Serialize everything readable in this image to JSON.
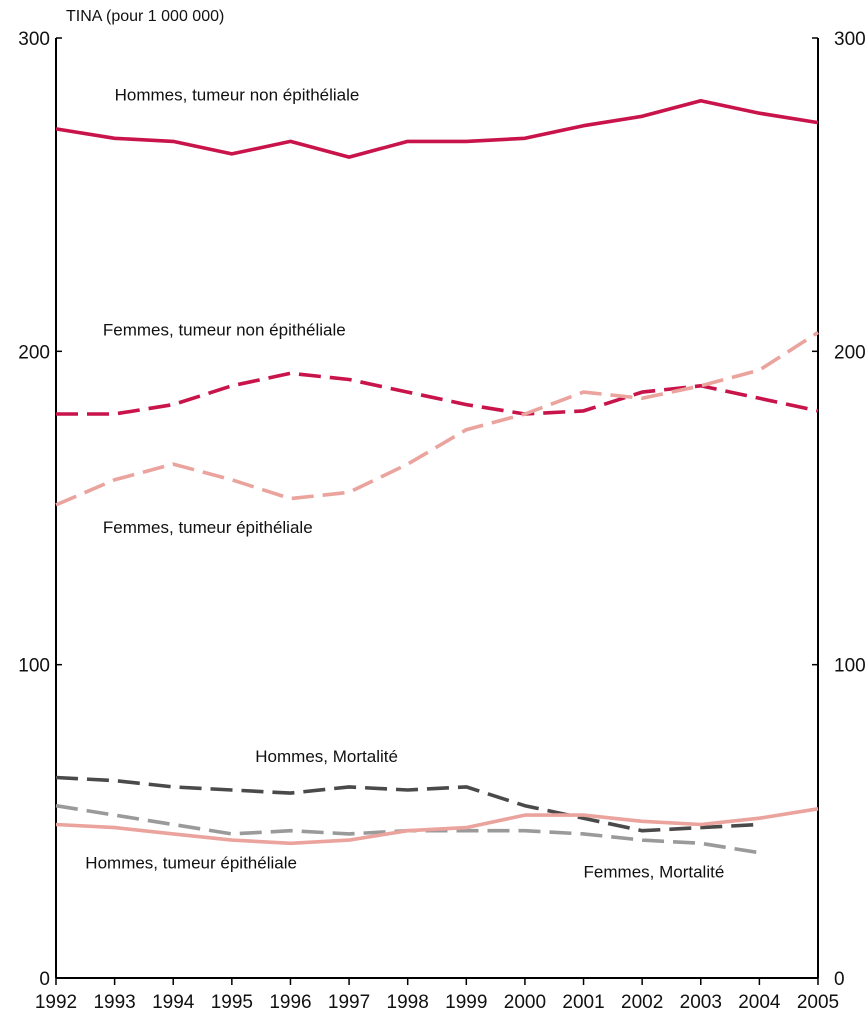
{
  "chart_data": {
    "type": "line",
    "ylabel": "TINA (pour 1 000 000)",
    "ylim": [
      0,
      300
    ],
    "yticks": [
      "0",
      "100",
      "200",
      "300"
    ],
    "x": [
      "1992",
      "1993",
      "1994",
      "1995",
      "1996",
      "1997",
      "1998",
      "1999",
      "2000",
      "2001",
      "2002",
      "2003",
      "2004",
      "2005"
    ],
    "grid": false,
    "series": [
      {
        "name": "Hommes, tumeur non épithéliale",
        "color": "#c8144a",
        "dash": "solid",
        "values": [
          271,
          268,
          267,
          263,
          267,
          262,
          267,
          267,
          268,
          272,
          275,
          280,
          276,
          273
        ]
      },
      {
        "name": "Femmes, tumeur non épithéliale",
        "color": "#c8144a",
        "dash": "dashed",
        "values": [
          180,
          180,
          183,
          189,
          193,
          191,
          187,
          183,
          180,
          181,
          187,
          189,
          185,
          181
        ]
      },
      {
        "name": "Femmes, tumeur épithéliale",
        "color": "#eba39d",
        "dash": "dashed",
        "values": [
          151,
          159,
          164,
          159,
          153,
          155,
          164,
          175,
          180,
          187,
          185,
          189,
          194,
          206
        ]
      },
      {
        "name": "Hommes, Mortalité",
        "color": "#4a4a4a",
        "dash": "dashed",
        "values": [
          64,
          63,
          61,
          60,
          59,
          61,
          60,
          61,
          55,
          51,
          47,
          48,
          49,
          null
        ]
      },
      {
        "name": "Femmes, Mortalité",
        "color": "#9a9a9a",
        "dash": "dashed",
        "values": [
          55,
          52,
          49,
          46,
          47,
          46,
          47,
          47,
          47,
          46,
          44,
          43,
          40,
          null
        ]
      },
      {
        "name": "Hommes, tumeur épithéliale",
        "color": "#eba39d",
        "dash": "solid",
        "values": [
          49,
          48,
          46,
          44,
          43,
          44,
          47,
          48,
          52,
          52,
          50,
          49,
          51,
          54
        ]
      }
    ],
    "annotations": [
      {
        "text": "Hommes, tumeur non épithéliale",
        "series": 0,
        "x": "1993",
        "y": 280
      },
      {
        "text": "Femmes, tumeur non épithéliale",
        "series": 1,
        "x": "1992.8",
        "y": 205
      },
      {
        "text": "Femmes, tumeur épithéliale",
        "series": 2,
        "x": "1992.8",
        "y": 142
      },
      {
        "text": "Hommes, Mortalité",
        "series": 3,
        "x": "1995.4",
        "y": 69
      },
      {
        "text": "Hommes, tumeur épithéliale",
        "series": 5,
        "x": "1992.5",
        "y": 35
      },
      {
        "text": "Femmes, Mortalité",
        "series": 4,
        "x": "2001",
        "y": 32
      }
    ]
  }
}
